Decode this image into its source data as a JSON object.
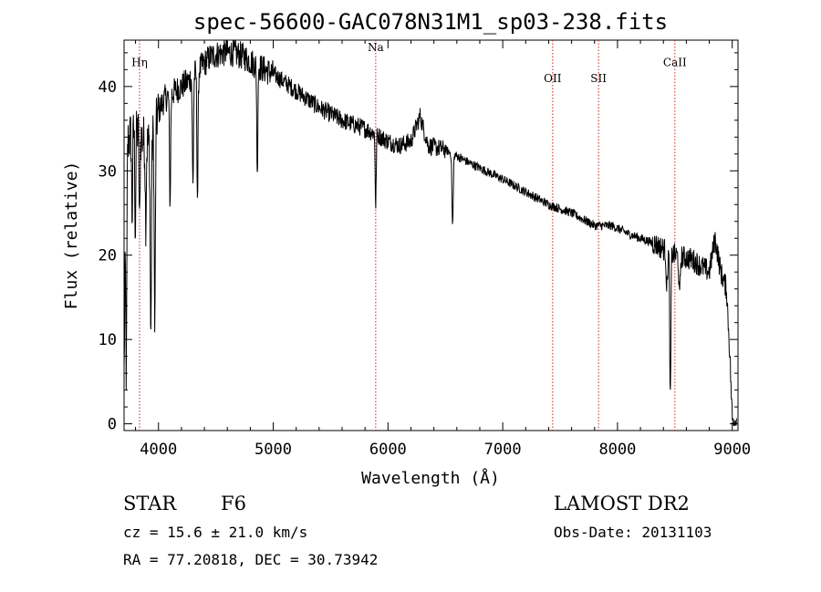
{
  "chart_data": {
    "type": "line",
    "title": "spec-56600-GAC078N31M1_sp03-238.fits",
    "xlabel": "Wavelength (Å)",
    "ylabel": "Flux (relative)",
    "xlim": [
      3700,
      9050
    ],
    "ylim": [
      -0.8,
      45.5
    ],
    "xticks": [
      4000,
      5000,
      6000,
      7000,
      8000,
      9000
    ],
    "yticks": [
      0,
      10,
      20,
      30,
      40
    ],
    "grid": false,
    "series_color": "#000000",
    "line_marker_color": "#cc2222",
    "spectral_lines": [
      {
        "name": "Hη",
        "wavelength": 3835,
        "label_flux": 42.4
      },
      {
        "name": "Na",
        "wavelength": 5893,
        "label_flux": 44.2
      },
      {
        "name": "OII",
        "wavelength": 7435,
        "label_flux": 40.5
      },
      {
        "name": "SII",
        "wavelength": 7835,
        "label_flux": 40.5
      },
      {
        "name": "CaII",
        "wavelength": 8500,
        "label_flux": 42.4
      }
    ],
    "continuum": [
      [
        3700,
        6
      ],
      [
        3720,
        33
      ],
      [
        3750,
        34
      ],
      [
        3800,
        35
      ],
      [
        3850,
        34
      ],
      [
        3900,
        33
      ],
      [
        3950,
        34
      ],
      [
        4000,
        37
      ],
      [
        4050,
        38.5
      ],
      [
        4150,
        39.5
      ],
      [
        4250,
        40.5
      ],
      [
        4350,
        42
      ],
      [
        4450,
        43.5
      ],
      [
        4550,
        44
      ],
      [
        4650,
        44
      ],
      [
        4750,
        43.5
      ],
      [
        4850,
        42.5
      ],
      [
        5000,
        41.5
      ],
      [
        5200,
        39.5
      ],
      [
        5400,
        37.5
      ],
      [
        5600,
        36
      ],
      [
        5800,
        35
      ],
      [
        5900,
        34.3
      ],
      [
        6000,
        33.5
      ],
      [
        6100,
        33
      ],
      [
        6200,
        33.5
      ],
      [
        6280,
        36.5
      ],
      [
        6350,
        33
      ],
      [
        6500,
        32.5
      ],
      [
        6700,
        31
      ],
      [
        7000,
        29
      ],
      [
        7200,
        27.5
      ],
      [
        7400,
        26
      ],
      [
        7600,
        25
      ],
      [
        7800,
        23.5
      ],
      [
        7950,
        23.5
      ],
      [
        8100,
        22.5
      ],
      [
        8300,
        21.5
      ],
      [
        8500,
        20
      ],
      [
        8650,
        19.5
      ],
      [
        8800,
        18
      ],
      [
        8850,
        22
      ],
      [
        8900,
        18
      ],
      [
        8950,
        16
      ],
      [
        8980,
        8
      ],
      [
        9000,
        0.5
      ],
      [
        9050,
        0.3
      ]
    ],
    "absorption_features": [
      {
        "wavelength": 3720,
        "depth": 27,
        "width": 6
      },
      {
        "wavelength": 3770,
        "depth": 10,
        "width": 6
      },
      {
        "wavelength": 3798,
        "depth": 12,
        "width": 6
      },
      {
        "wavelength": 3835,
        "depth": 11,
        "width": 6
      },
      {
        "wavelength": 3889,
        "depth": 9,
        "width": 6
      },
      {
        "wavelength": 3933,
        "depth": 24,
        "width": 7
      },
      {
        "wavelength": 3968,
        "depth": 24,
        "width": 7
      },
      {
        "wavelength": 4101,
        "depth": 13,
        "width": 7
      },
      {
        "wavelength": 4300,
        "depth": 13,
        "width": 7
      },
      {
        "wavelength": 4340,
        "depth": 15,
        "width": 7
      },
      {
        "wavelength": 4861,
        "depth": 13.5,
        "width": 6
      },
      {
        "wavelength": 5893,
        "depth": 9,
        "width": 6
      },
      {
        "wavelength": 6563,
        "depth": 8.5,
        "width": 8
      },
      {
        "wavelength": 8430,
        "depth": 4.5,
        "width": 8
      },
      {
        "wavelength": 8460,
        "depth": 18,
        "width": 7
      },
      {
        "wavelength": 8540,
        "depth": 5,
        "width": 8
      }
    ]
  },
  "info": {
    "class": "STAR",
    "subclass": "F6",
    "survey": "LAMOST DR2",
    "cz": "cz = 15.6 ± 21.0 km/s",
    "obs_date": "Obs-Date: 20131103",
    "coords": "RA =  77.20818, DEC =  30.73942"
  }
}
